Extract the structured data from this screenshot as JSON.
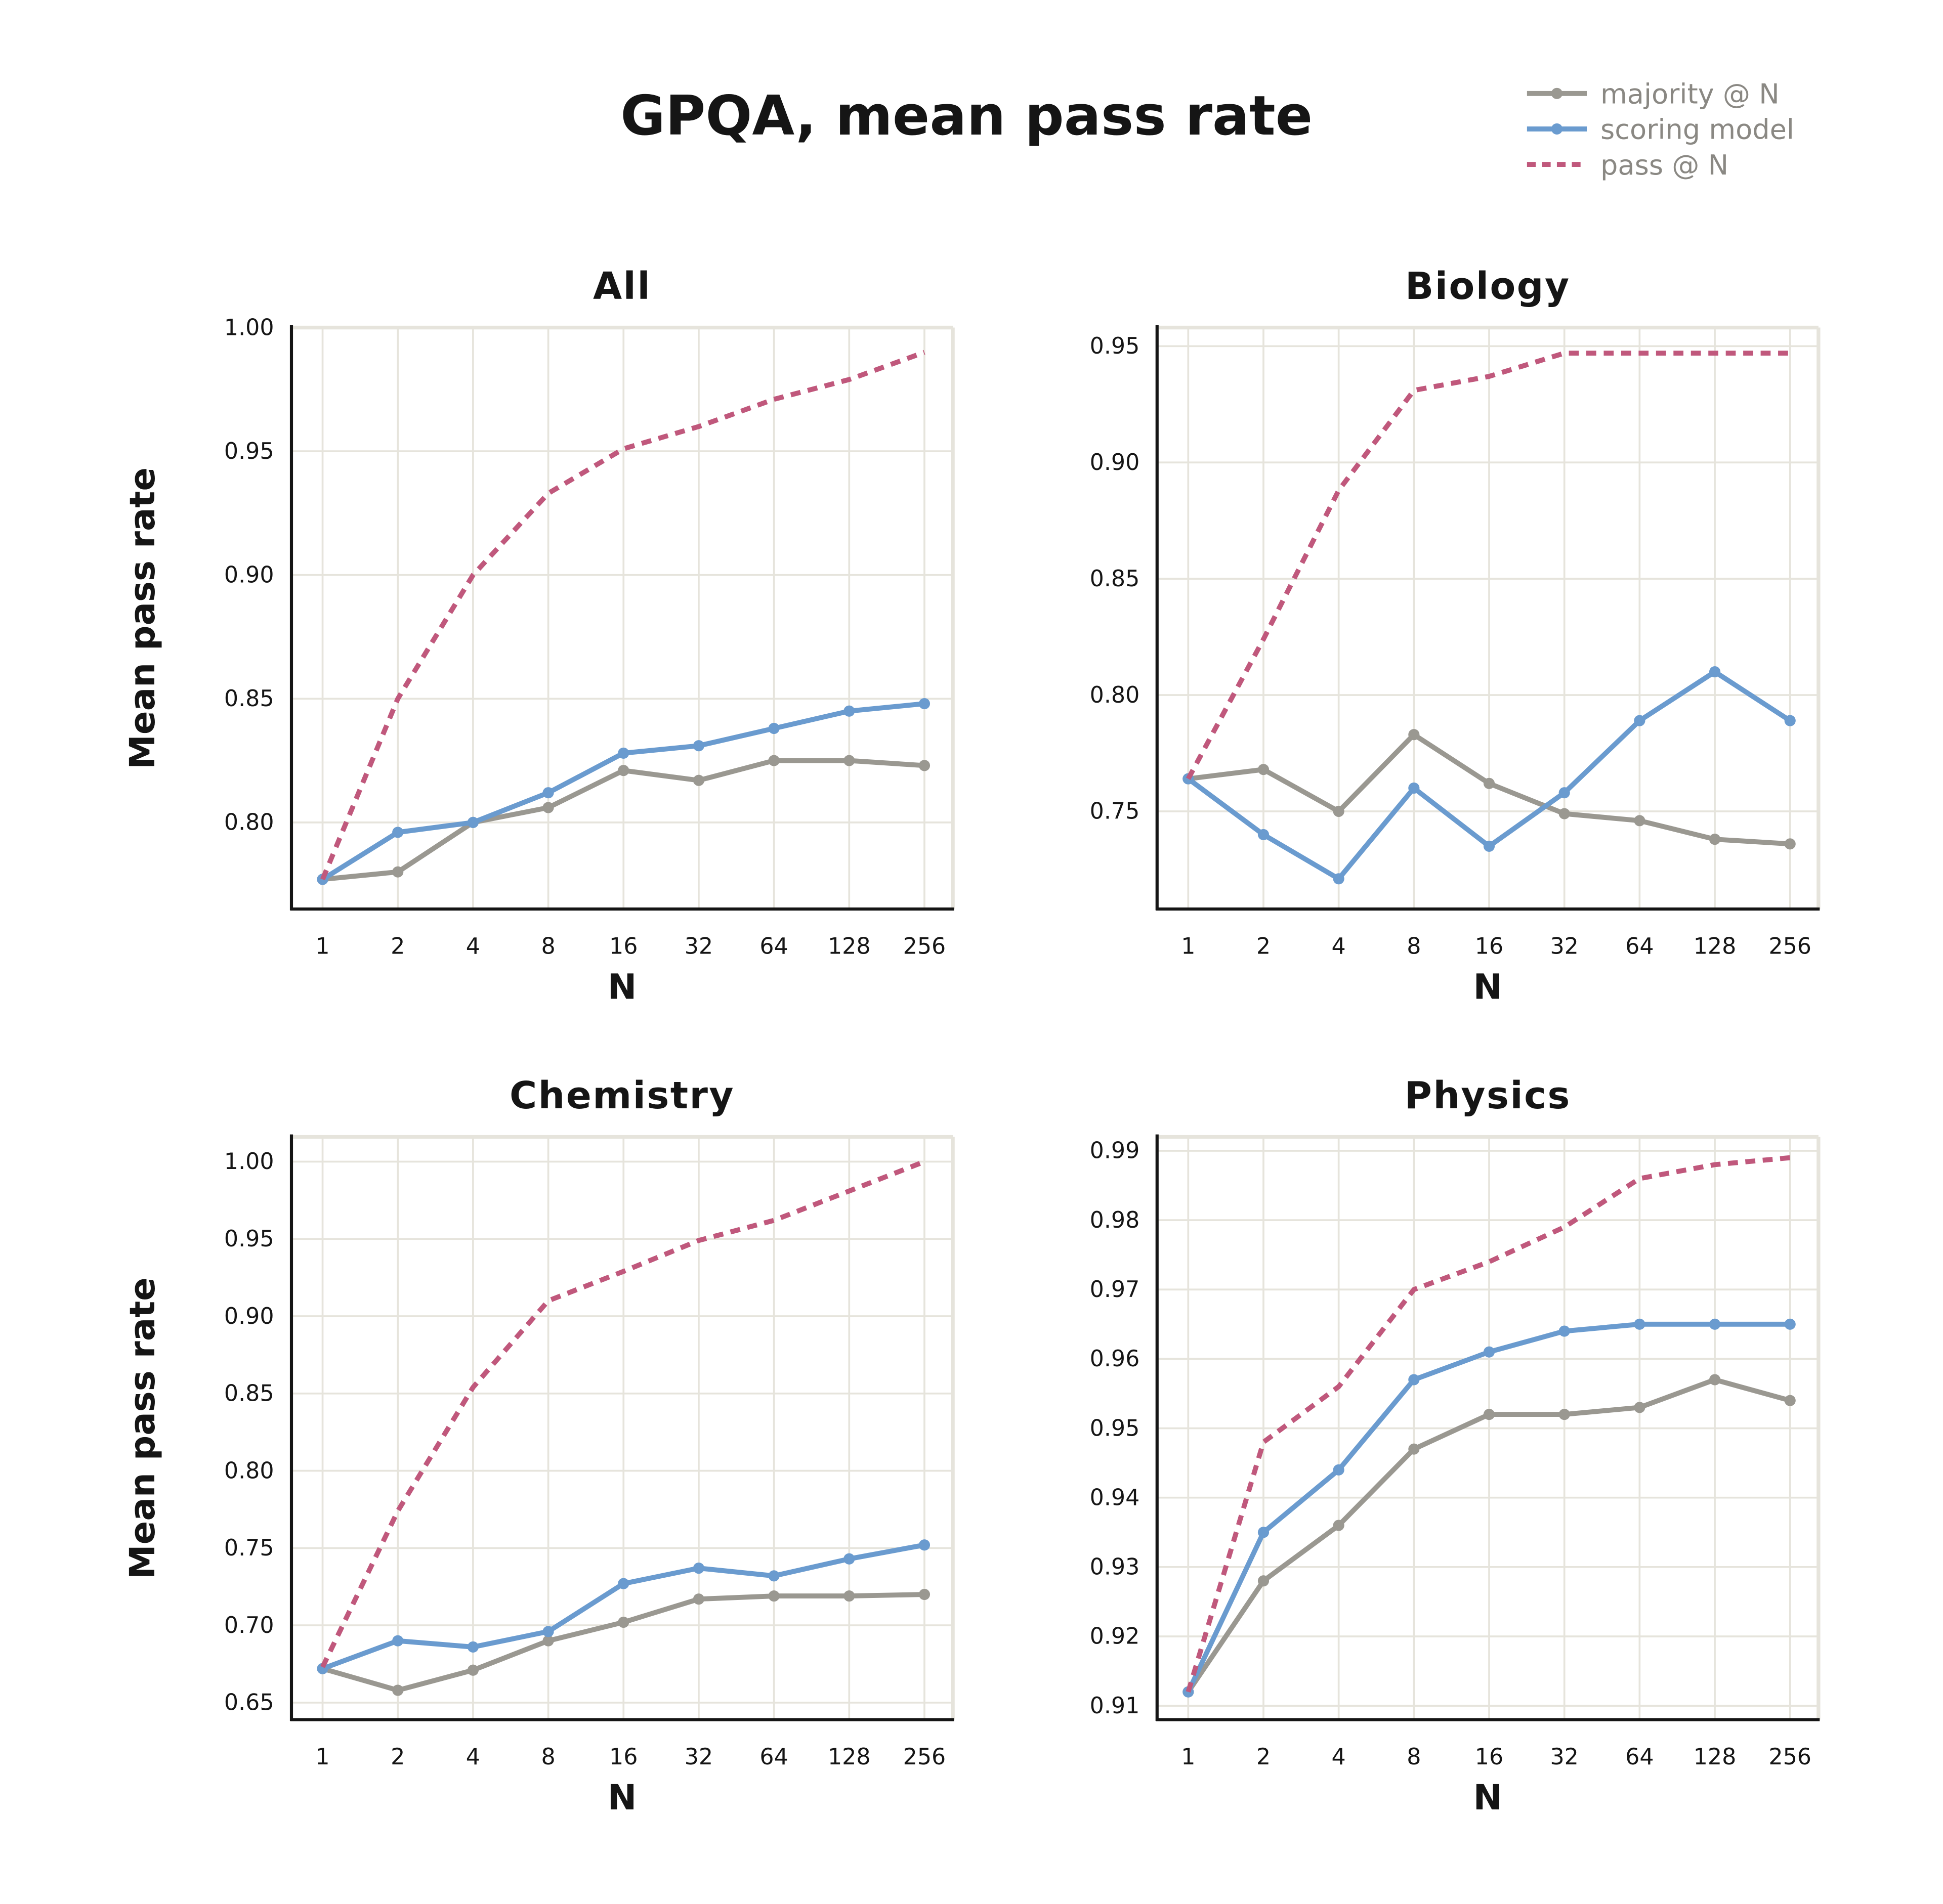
{
  "title": "GPQA, mean pass rate",
  "colors": {
    "majority": "#9a9891",
    "scoring": "#6a9bcf",
    "pass": "#c0587c",
    "grid": "#e6e4dc",
    "spine": "#151515"
  },
  "legend": [
    {
      "label": "majority @ N",
      "key": "majority",
      "style": "solid-marker"
    },
    {
      "label": "scoring model",
      "key": "scoring",
      "style": "solid-marker"
    },
    {
      "label": "pass @ N",
      "key": "pass",
      "style": "dashed"
    }
  ],
  "chart_data": [
    {
      "type": "line",
      "title": "All",
      "xlabel": "N",
      "ylabel": "Mean pass rate",
      "categories": [
        "1",
        "2",
        "4",
        "8",
        "16",
        "32",
        "64",
        "128",
        "256"
      ],
      "ylim": [
        0.765,
        1.0
      ],
      "yticks": [
        "0.80",
        "0.85",
        "0.90",
        "0.95",
        "1.00"
      ],
      "grid": true,
      "series": [
        {
          "name": "majority @ N",
          "key": "majority",
          "values": [
            0.777,
            0.78,
            0.8,
            0.806,
            0.821,
            0.817,
            0.825,
            0.825,
            0.823
          ]
        },
        {
          "name": "scoring model",
          "key": "scoring",
          "values": [
            0.777,
            0.796,
            0.8,
            0.812,
            0.828,
            0.831,
            0.838,
            0.845,
            0.848
          ]
        },
        {
          "name": "pass @ N",
          "key": "pass",
          "values": [
            0.777,
            0.85,
            0.9,
            0.933,
            0.951,
            0.96,
            0.971,
            0.979,
            0.99
          ]
        }
      ]
    },
    {
      "type": "line",
      "title": "Biology",
      "xlabel": "N",
      "ylabel": "",
      "categories": [
        "1",
        "2",
        "4",
        "8",
        "16",
        "32",
        "64",
        "128",
        "256"
      ],
      "ylim": [
        0.708,
        0.958
      ],
      "yticks": [
        "0.75",
        "0.80",
        "0.85",
        "0.90",
        "0.95"
      ],
      "grid": true,
      "series": [
        {
          "name": "majority @ N",
          "key": "majority",
          "values": [
            0.764,
            0.768,
            0.75,
            0.783,
            0.762,
            0.749,
            0.746,
            0.738,
            0.736
          ]
        },
        {
          "name": "scoring model",
          "key": "scoring",
          "values": [
            0.764,
            0.74,
            0.721,
            0.76,
            0.735,
            0.758,
            0.789,
            0.81,
            0.789
          ]
        },
        {
          "name": "pass @ N",
          "key": "pass",
          "values": [
            0.764,
            0.824,
            0.888,
            0.931,
            0.937,
            0.947,
            0.947,
            0.947,
            0.947
          ]
        }
      ]
    },
    {
      "type": "line",
      "title": "Chemistry",
      "xlabel": "N",
      "ylabel": "Mean pass rate",
      "categories": [
        "1",
        "2",
        "4",
        "8",
        "16",
        "32",
        "64",
        "128",
        "256"
      ],
      "ylim": [
        0.639,
        1.016
      ],
      "yticks": [
        "0.65",
        "0.70",
        "0.75",
        "0.80",
        "0.85",
        "0.90",
        "0.95",
        "1.00"
      ],
      "grid": true,
      "series": [
        {
          "name": "majority @ N",
          "key": "majority",
          "values": [
            0.672,
            0.658,
            0.671,
            0.69,
            0.702,
            0.717,
            0.719,
            0.719,
            0.72
          ]
        },
        {
          "name": "scoring model",
          "key": "scoring",
          "values": [
            0.672,
            0.69,
            0.686,
            0.696,
            0.727,
            0.737,
            0.732,
            0.743,
            0.752
          ]
        },
        {
          "name": "pass @ N",
          "key": "pass",
          "values": [
            0.673,
            0.774,
            0.854,
            0.91,
            0.929,
            0.949,
            0.962,
            0.981,
            1.0
          ]
        }
      ]
    },
    {
      "type": "line",
      "title": "Physics",
      "xlabel": "N",
      "ylabel": "",
      "categories": [
        "1",
        "2",
        "4",
        "8",
        "16",
        "32",
        "64",
        "128",
        "256"
      ],
      "ylim": [
        0.908,
        0.992
      ],
      "yticks": [
        "0.91",
        "0.92",
        "0.93",
        "0.94",
        "0.95",
        "0.96",
        "0.97",
        "0.98",
        "0.99"
      ],
      "grid": true,
      "series": [
        {
          "name": "majority @ N",
          "key": "majority",
          "values": [
            0.912,
            0.928,
            0.936,
            0.947,
            0.952,
            0.952,
            0.953,
            0.957,
            0.954
          ]
        },
        {
          "name": "scoring model",
          "key": "scoring",
          "values": [
            0.912,
            0.935,
            0.944,
            0.957,
            0.961,
            0.964,
            0.965,
            0.965,
            0.965
          ]
        },
        {
          "name": "pass @ N",
          "key": "pass",
          "values": [
            0.912,
            0.948,
            0.956,
            0.97,
            0.974,
            0.979,
            0.986,
            0.988,
            0.989
          ]
        }
      ]
    }
  ]
}
